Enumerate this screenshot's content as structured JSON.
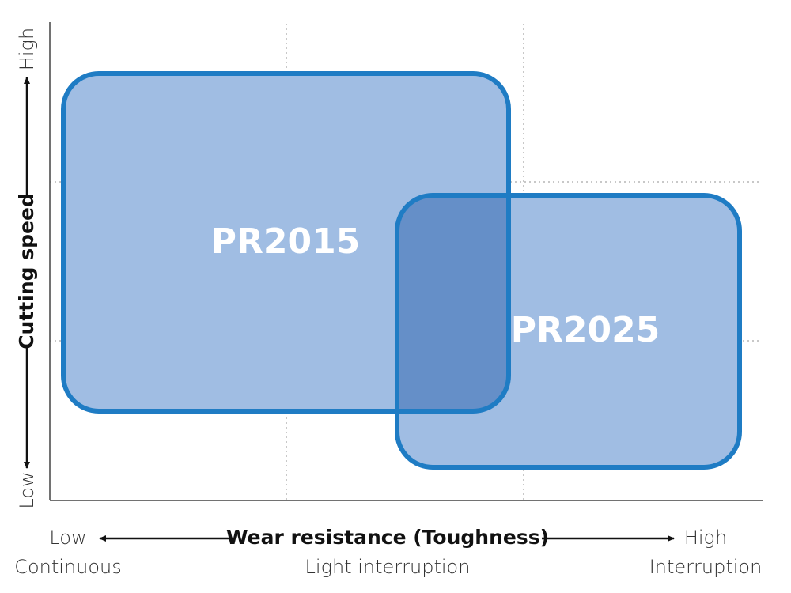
{
  "y_axis": {
    "label": "Cutting speed",
    "high": "High",
    "low": "Low"
  },
  "x_axis": {
    "label": "Wear resistance (Toughness)",
    "low": "Low",
    "high": "High",
    "zones": [
      "Continuous",
      "Light interruption",
      "Interruption"
    ]
  },
  "regions": [
    {
      "label": "PR2015"
    },
    {
      "label": "PR2025"
    }
  ]
}
